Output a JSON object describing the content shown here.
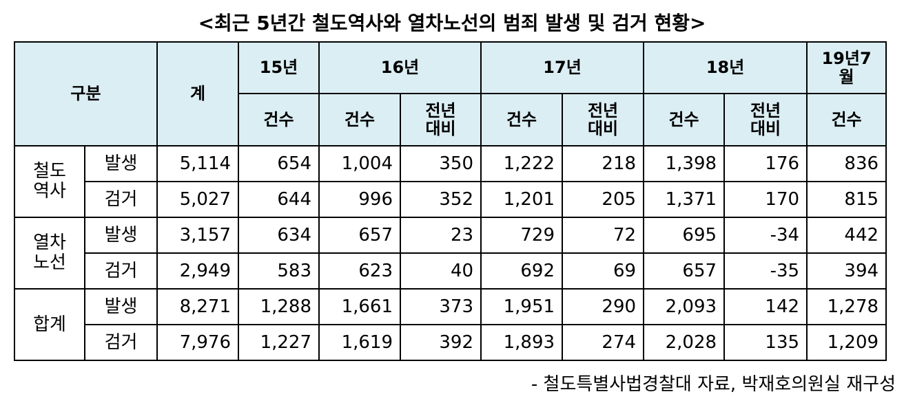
{
  "title": "<최근 5년간 철도역사와 열차노선의 범죄 발생 및 검거 현황>",
  "table": {
    "header": {
      "group": "구분",
      "total": "계",
      "years": [
        "15년",
        "16년",
        "17년",
        "18년",
        "19년7월"
      ],
      "sub": [
        "건수",
        "건수",
        "전년\n대비",
        "건수",
        "전년\n대비",
        "건수",
        "전년\n대비",
        "건수"
      ]
    },
    "groups": [
      {
        "label": "철도\n역사",
        "rows": [
          {
            "kind": "발생",
            "cells": [
              "5,114",
              "654",
              "1,004",
              "350",
              "1,222",
              "218",
              "1,398",
              "176",
              "836"
            ]
          },
          {
            "kind": "검거",
            "cells": [
              "5,027",
              "644",
              "996",
              "352",
              "1,201",
              "205",
              "1,371",
              "170",
              "815"
            ]
          }
        ]
      },
      {
        "label": "열차\n노선",
        "rows": [
          {
            "kind": "발생",
            "cells": [
              "3,157",
              "634",
              "657",
              "23",
              "729",
              "72",
              "695",
              "-34",
              "442"
            ]
          },
          {
            "kind": "검거",
            "cells": [
              "2,949",
              "583",
              "623",
              "40",
              "692",
              "69",
              "657",
              "-35",
              "394"
            ]
          }
        ]
      },
      {
        "label": "합계",
        "rows": [
          {
            "kind": "발생",
            "cells": [
              "8,271",
              "1,288",
              "1,661",
              "373",
              "1,951",
              "290",
              "2,093",
              "142",
              "1,278"
            ]
          },
          {
            "kind": "검거",
            "cells": [
              "7,976",
              "1,227",
              "1,619",
              "392",
              "1,893",
              "274",
              "2,028",
              "135",
              "1,209"
            ]
          }
        ]
      }
    ]
  },
  "source": "- 철도특별사법경찰대 자료, 박재호의원실 재구성"
}
